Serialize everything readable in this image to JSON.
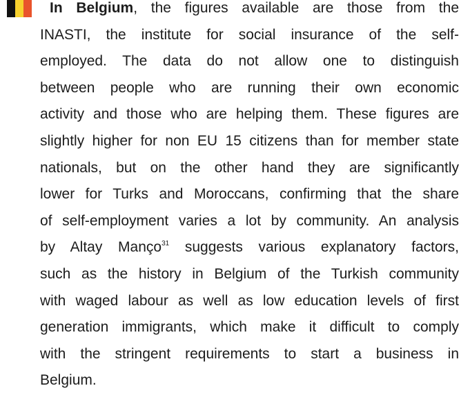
{
  "paragraph": {
    "lead": "In Belgium",
    "lines": [
      ", the figures available are those from the",
      "INASTI, the institute for social insurance of the self-",
      "employed. The data do not allow one to distinguish",
      "between people who are running their own economic",
      "activity and those who are helping them. These figures are",
      "slightly higher for non EU 15 citizens than for member state",
      "nationals, but on the other hand they are significantly",
      "lower for Turks and Moroccans, confirming that the share",
      "of self-employment varies a lot by community. An analysis",
      [
        "by Altay Manço",
        "31",
        " suggests various explanatory factors,"
      ],
      "such as the history in Belgium of the Turkish community",
      "with waged labour as well as low education levels of first",
      "generation immigrants, which make it difficult to comply",
      "with the stringent requirements to start a business in",
      "Belgium."
    ]
  }
}
